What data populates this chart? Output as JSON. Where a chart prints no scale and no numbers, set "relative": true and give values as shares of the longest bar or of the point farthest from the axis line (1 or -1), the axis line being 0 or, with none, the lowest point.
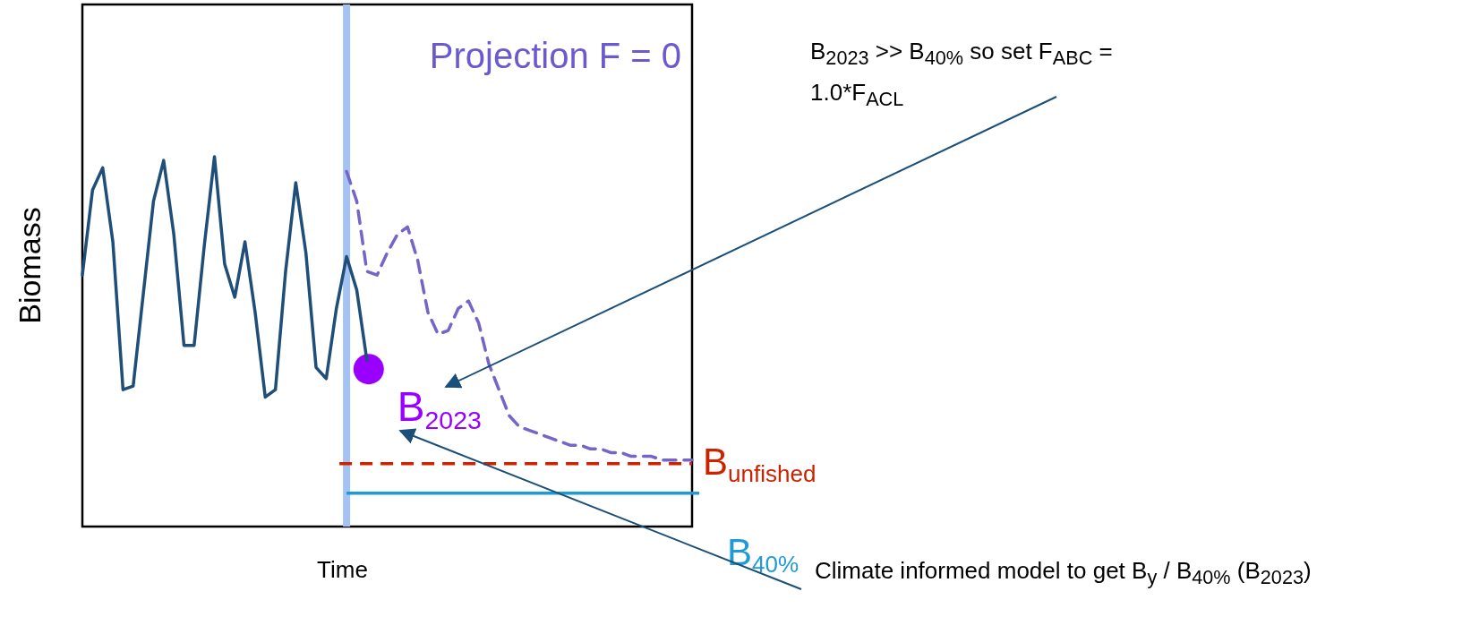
{
  "chart_data": {
    "type": "line",
    "relative": true,
    "xlabel": "Time",
    "ylabel": "Biomass",
    "marker": "none",
    "categories": [
      null,
      null,
      null,
      null,
      null,
      null,
      null,
      null,
      null,
      null,
      null,
      null,
      null,
      null,
      null,
      null,
      null,
      null,
      null,
      null,
      null,
      null,
      null,
      null,
      null,
      null,
      null,
      null,
      null,
      null,
      null,
      null,
      null,
      null,
      null,
      null,
      null,
      null,
      null,
      null,
      null,
      null,
      null,
      null,
      null,
      null,
      null,
      null,
      null,
      null,
      null,
      null,
      null,
      null,
      null,
      null,
      null,
      null,
      null,
      null,
      null
    ],
    "series": [
      {
        "color": "#1f4e79",
        "line_style": "solid",
        "values": [
          0.68,
          0.91,
          0.97,
          0.77,
          0.37,
          0.38,
          0.63,
          0.88,
          0.99,
          0.79,
          0.49,
          0.49,
          0.76,
          1.0,
          0.71,
          0.62,
          0.77,
          0.58,
          0.35,
          0.37,
          0.69,
          0.93,
          0.74,
          0.43,
          0.4,
          0.59,
          0.73,
          0.64,
          0.45,
          null,
          null,
          null,
          null,
          null,
          null,
          null,
          null,
          null,
          null,
          null,
          null,
          null,
          null,
          null,
          null,
          null,
          null,
          null,
          null,
          null,
          null,
          null,
          null,
          null,
          null,
          null,
          null,
          null,
          null,
          null,
          null
        ]
      },
      {
        "color": "#7466c8",
        "line_style": "dashed",
        "values": [
          null,
          null,
          null,
          null,
          null,
          null,
          null,
          null,
          null,
          null,
          null,
          null,
          null,
          null,
          null,
          null,
          null,
          null,
          null,
          null,
          null,
          null,
          null,
          null,
          null,
          null,
          0.96,
          0.88,
          0.69,
          0.68,
          0.74,
          0.79,
          0.81,
          0.72,
          0.58,
          0.52,
          0.53,
          0.59,
          0.61,
          0.55,
          0.44,
          0.37,
          0.3,
          0.27,
          0.26,
          0.25,
          0.24,
          0.23,
          0.22,
          0.22,
          0.21,
          0.21,
          0.2,
          0.2,
          0.19,
          0.19,
          0.19,
          0.18,
          0.18,
          0.18,
          0.18
        ]
      }
    ],
    "ref_lines": [
      {
        "axis": "y",
        "value": 0.17,
        "label": "B$_{unfished}$",
        "color": "#cc2200",
        "line_style": "dashed"
      },
      {
        "axis": "y",
        "value": 0.09,
        "label": "B$_{40%}$",
        "color": "#1e9bd7",
        "line_style": "solid"
      }
    ],
    "annotations": [
      "Projection F = 0",
      "B$_{2023}$",
      "B$_{2023}$ >> B$_{40%}$ so set F$_{ABC}$ = 1.0*F$_{ACL}$",
      "Climate informed model to get B$_{y}$ / B$_{40%}$ (B$_{2023}$)"
    ]
  }
}
